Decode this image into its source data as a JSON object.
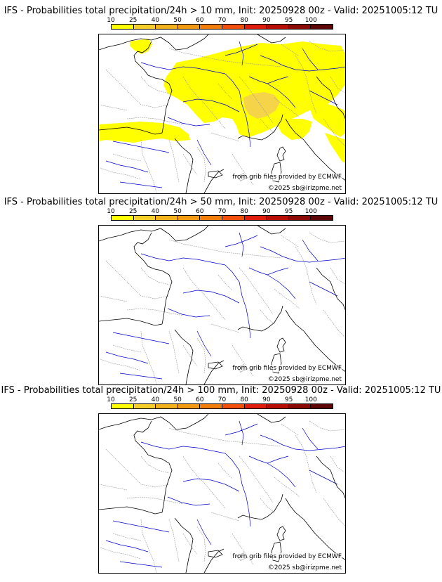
{
  "colors": {
    "scale": [
      "#ffff00",
      "#f7cf2a",
      "#f2b21d",
      "#f39a12",
      "#f27d0b",
      "#f04f0c",
      "#de1d0d",
      "#b70e08",
      "#8b0a06",
      "#5d0606"
    ],
    "land_prob": "#ffff00",
    "land_prob_mid": "#f5d44a",
    "coast": "#000000",
    "river": "#0000cc",
    "border": "#9a9a9a"
  },
  "panels": [
    {
      "title": "IFS - Probabilities total precipitation/24h > 10 mm, Init: 20250928 00z - Valid: 20251005:12 TU",
      "colorbar_ticks": [
        "10",
        "25",
        "40",
        "50",
        "60",
        "70",
        "80",
        "90",
        "95",
        "100"
      ],
      "credit": "from grib files provided by ECMWF",
      "copyright": "©2025 sb@irizpme.net",
      "has_shading": true
    },
    {
      "title": "IFS - Probabilities total precipitation/24h > 50 mm, Init: 20250928 00z - Valid: 20251005:12 TU",
      "colorbar_ticks": [
        "10",
        "25",
        "40",
        "50",
        "60",
        "70",
        "80",
        "90",
        "95",
        "100"
      ],
      "credit": "from grib files provided by ECMWF",
      "copyright": "©2025 sb@irizpme.net",
      "has_shading": false
    },
    {
      "title": "IFS - Probabilities total precipitation/24h > 100 mm, Init: 20250928 00z - Valid: 20251005:12 TU",
      "colorbar_ticks": [
        "10",
        "25",
        "40",
        "50",
        "60",
        "70",
        "80",
        "90",
        "95",
        "100"
      ],
      "credit": "from grib files provided by ECMWF",
      "copyright": "©2025 sb@irizpme.net",
      "has_shading": false
    }
  ]
}
